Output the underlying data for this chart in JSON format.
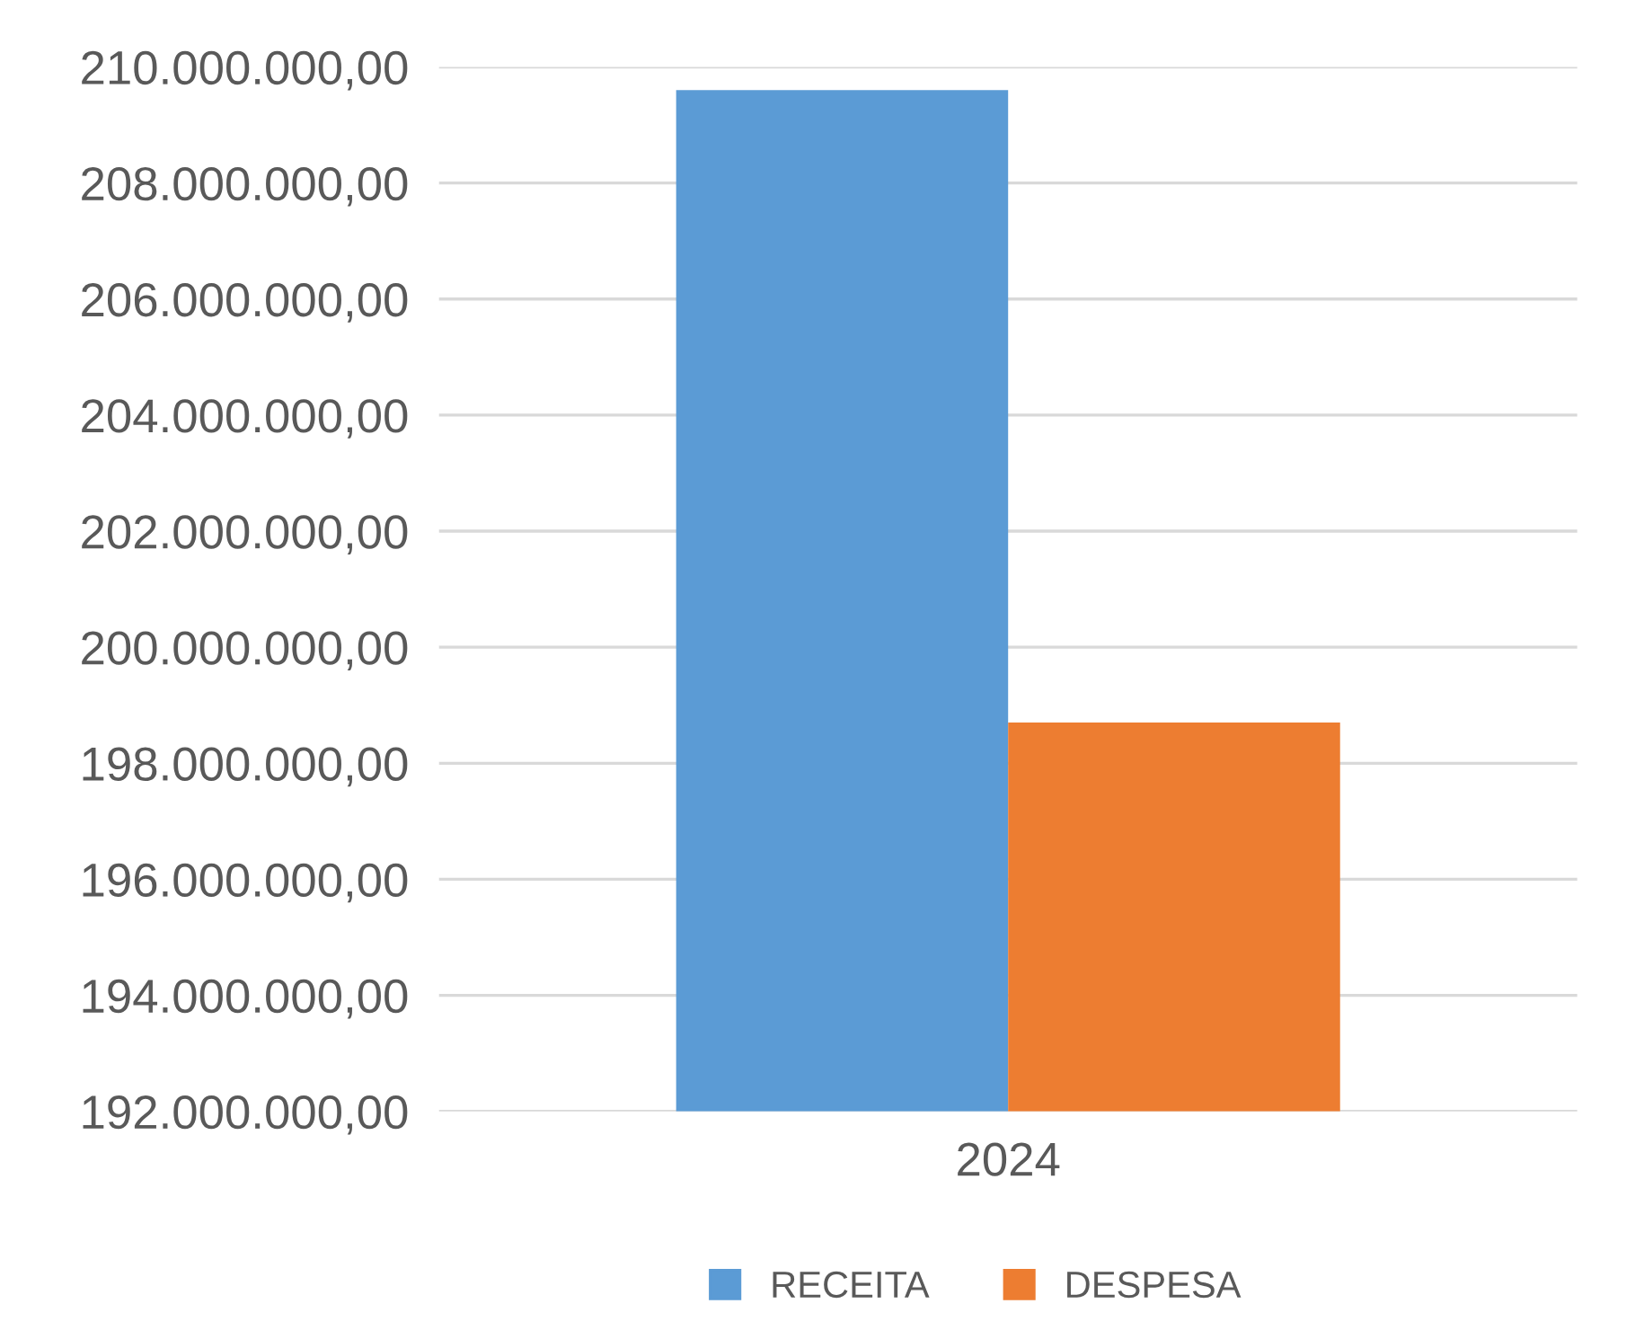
{
  "chart_data": {
    "type": "bar",
    "categories": [
      "2024"
    ],
    "series": [
      {
        "name": "RECEITA",
        "color": "#5b9bd5",
        "values": [
          209600000
        ]
      },
      {
        "name": "DESPESA",
        "color": "#ed7d31",
        "values": [
          198700000
        ]
      }
    ],
    "ylim": [
      192000000,
      210000000
    ],
    "yticks": [
      {
        "value": 192000000,
        "label": "192.000.000,00"
      },
      {
        "value": 194000000,
        "label": "194.000.000,00"
      },
      {
        "value": 196000000,
        "label": "196.000.000,00"
      },
      {
        "value": 198000000,
        "label": "198.000.000,00"
      },
      {
        "value": 200000000,
        "label": "200.000.000,00"
      },
      {
        "value": 202000000,
        "label": "202.000.000,00"
      },
      {
        "value": 204000000,
        "label": "204.000.000,00"
      },
      {
        "value": 206000000,
        "label": "206.000.000,00"
      },
      {
        "value": 208000000,
        "label": "208.000.000,00"
      },
      {
        "value": 210000000,
        "label": "210.000.000,00"
      }
    ],
    "grid": "y",
    "legend": "bottom"
  }
}
